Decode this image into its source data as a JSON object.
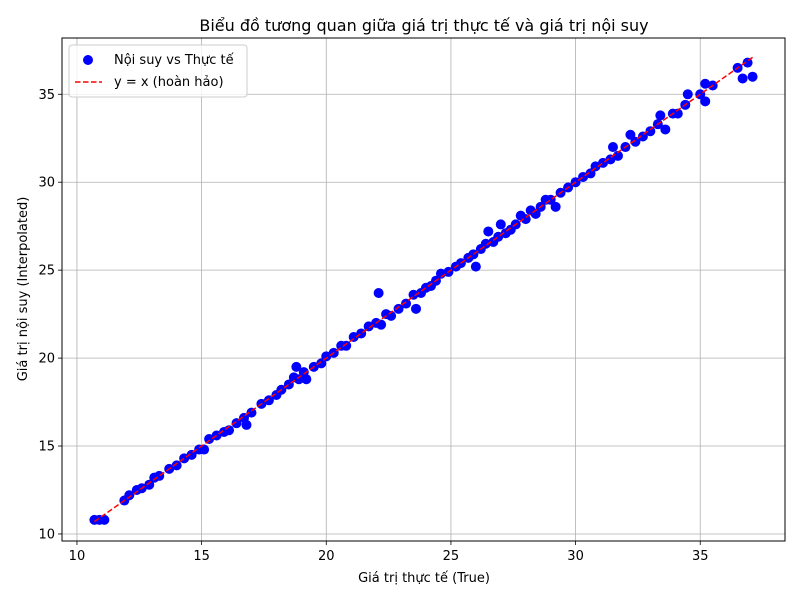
{
  "chart_data": {
    "type": "scatter",
    "title": "Biểu đồ tương quan giữa giá trị thực tế và giá trị nội suy",
    "xlabel": "Giá trị thực tế (True)",
    "ylabel": "Giá trị nội suy (Interpolated)",
    "xlim": [
      9.4,
      38.4
    ],
    "ylim": [
      9.6,
      38.2
    ],
    "xticks": [
      10,
      15,
      20,
      25,
      30,
      35
    ],
    "yticks": [
      10,
      15,
      20,
      25,
      30,
      35
    ],
    "grid": true,
    "legend_position": "top-left",
    "series": [
      {
        "name": "Nội suy vs Thực tế",
        "kind": "scatter",
        "color": "#0000ff",
        "points": [
          [
            10.7,
            10.8
          ],
          [
            10.9,
            10.8
          ],
          [
            11.1,
            10.8
          ],
          [
            11.9,
            11.9
          ],
          [
            12.1,
            12.2
          ],
          [
            12.4,
            12.5
          ],
          [
            12.6,
            12.6
          ],
          [
            12.9,
            12.8
          ],
          [
            13.1,
            13.2
          ],
          [
            13.3,
            13.3
          ],
          [
            13.7,
            13.7
          ],
          [
            14.0,
            13.9
          ],
          [
            14.3,
            14.3
          ],
          [
            14.6,
            14.5
          ],
          [
            14.9,
            14.8
          ],
          [
            15.1,
            14.8
          ],
          [
            15.3,
            15.4
          ],
          [
            15.6,
            15.6
          ],
          [
            15.9,
            15.8
          ],
          [
            16.1,
            15.9
          ],
          [
            16.4,
            16.3
          ],
          [
            16.7,
            16.6
          ],
          [
            16.8,
            16.2
          ],
          [
            17.0,
            16.9
          ],
          [
            17.4,
            17.4
          ],
          [
            17.7,
            17.6
          ],
          [
            18.0,
            17.9
          ],
          [
            18.2,
            18.2
          ],
          [
            18.5,
            18.5
          ],
          [
            18.7,
            18.9
          ],
          [
            18.8,
            19.5
          ],
          [
            18.9,
            18.8
          ],
          [
            19.1,
            19.2
          ],
          [
            19.2,
            18.8
          ],
          [
            19.5,
            19.5
          ],
          [
            19.8,
            19.7
          ],
          [
            20.0,
            20.1
          ],
          [
            20.3,
            20.3
          ],
          [
            20.6,
            20.7
          ],
          [
            20.8,
            20.7
          ],
          [
            21.1,
            21.2
          ],
          [
            21.4,
            21.4
          ],
          [
            21.7,
            21.8
          ],
          [
            22.0,
            22.0
          ],
          [
            22.1,
            23.7
          ],
          [
            22.2,
            21.9
          ],
          [
            22.4,
            22.5
          ],
          [
            22.6,
            22.4
          ],
          [
            22.9,
            22.8
          ],
          [
            23.2,
            23.1
          ],
          [
            23.5,
            23.6
          ],
          [
            23.6,
            22.8
          ],
          [
            23.8,
            23.7
          ],
          [
            24.0,
            24.0
          ],
          [
            24.2,
            24.1
          ],
          [
            24.4,
            24.4
          ],
          [
            24.6,
            24.8
          ],
          [
            24.9,
            24.9
          ],
          [
            25.2,
            25.2
          ],
          [
            25.4,
            25.4
          ],
          [
            25.7,
            25.7
          ],
          [
            25.9,
            25.9
          ],
          [
            26.0,
            25.2
          ],
          [
            26.2,
            26.2
          ],
          [
            26.4,
            26.5
          ],
          [
            26.5,
            27.2
          ],
          [
            26.7,
            26.6
          ],
          [
            26.9,
            26.9
          ],
          [
            27.0,
            27.6
          ],
          [
            27.2,
            27.1
          ],
          [
            27.4,
            27.3
          ],
          [
            27.6,
            27.6
          ],
          [
            27.8,
            28.1
          ],
          [
            28.0,
            27.9
          ],
          [
            28.2,
            28.4
          ],
          [
            28.4,
            28.2
          ],
          [
            28.6,
            28.6
          ],
          [
            28.8,
            29.0
          ],
          [
            29.0,
            29.0
          ],
          [
            29.2,
            28.6
          ],
          [
            29.4,
            29.4
          ],
          [
            29.7,
            29.7
          ],
          [
            30.0,
            30.0
          ],
          [
            30.3,
            30.3
          ],
          [
            30.6,
            30.5
          ],
          [
            30.8,
            30.9
          ],
          [
            31.1,
            31.1
          ],
          [
            31.4,
            31.3
          ],
          [
            31.5,
            32.0
          ],
          [
            31.7,
            31.5
          ],
          [
            32.0,
            32.0
          ],
          [
            32.2,
            32.7
          ],
          [
            32.4,
            32.3
          ],
          [
            32.7,
            32.6
          ],
          [
            33.0,
            32.9
          ],
          [
            33.3,
            33.3
          ],
          [
            33.4,
            33.8
          ],
          [
            33.6,
            33.0
          ],
          [
            33.9,
            33.9
          ],
          [
            34.1,
            33.9
          ],
          [
            34.4,
            34.4
          ],
          [
            34.5,
            35.0
          ],
          [
            35.0,
            35.0
          ],
          [
            35.2,
            35.6
          ],
          [
            35.2,
            34.6
          ],
          [
            35.5,
            35.5
          ],
          [
            36.5,
            36.5
          ],
          [
            36.7,
            35.9
          ],
          [
            36.9,
            36.8
          ],
          [
            37.1,
            36.0
          ]
        ]
      },
      {
        "name": "y = x (hoàn hảo)",
        "kind": "line",
        "style": "dashed",
        "color": "#ff0000",
        "x": [
          10.7,
          37.1
        ],
        "y": [
          10.7,
          37.1
        ]
      }
    ]
  }
}
